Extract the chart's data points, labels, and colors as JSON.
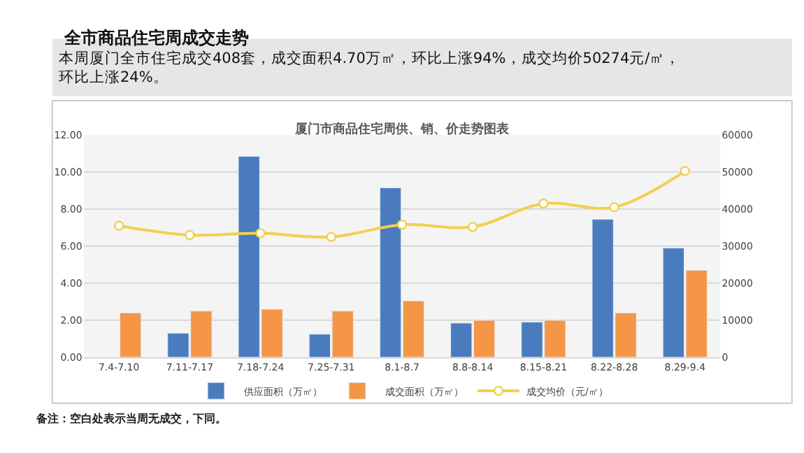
{
  "chart_data": {
    "type": "bar",
    "title": "厦门市商品住宅周供、销、价走势图表",
    "subtitle": "本周厦门全市住宅成交408套，成交面积4.70万㎡，环比上涨94%，成交均价50274元/㎡，环比上涨24%。",
    "annotations": [
      "全市商品住宅周成交走势",
      "备注：空白处表示当周无成交，下同。"
    ],
    "categories": [
      "7.4-7.10",
      "7.11-7.17",
      "7.18-7.24",
      "7.25-7.31",
      "8.1-8.7",
      "8.8-8.14",
      "8.15-8.21",
      "8.22-8.28",
      "8.29-9.4"
    ],
    "series": [
      {
        "name": "供应面积（万㎡）",
        "color": "#4a7bbf",
        "values": [
          null,
          1.3,
          10.85,
          1.25,
          9.15,
          1.85,
          1.9,
          7.45,
          5.9
        ]
      },
      {
        "name": "成交面积（万㎡）",
        "color": "#f59646",
        "values": [
          2.4,
          2.5,
          2.6,
          2.5,
          3.05,
          2.0,
          2.0,
          2.4,
          4.7
        ]
      },
      {
        "name": "成交均价（元/㎡）",
        "type": "line",
        "axis": "y2",
        "color": "#f0d050",
        "marker": "circle",
        "values": [
          35500,
          33000,
          33500,
          32500,
          35800,
          35200,
          41500,
          40500,
          50300
        ]
      }
    ],
    "ylim": [
      0,
      12
    ],
    "yticks": [
      {
        "value": 0,
        "label": "0.00"
      },
      {
        "value": 2,
        "label": "2.00"
      },
      {
        "value": 4,
        "label": "4.00"
      },
      {
        "value": 6,
        "label": "6.00"
      },
      {
        "value": 8,
        "label": "8.00"
      },
      {
        "value": 10,
        "label": "10.00"
      },
      {
        "value": 12,
        "label": "12.00"
      }
    ],
    "y2lim": [
      0,
      60000
    ],
    "y2ticks": [
      0,
      10000,
      20000,
      30000,
      40000,
      50000,
      60000
    ],
    "grid": "y",
    "legend": "bottom"
  }
}
